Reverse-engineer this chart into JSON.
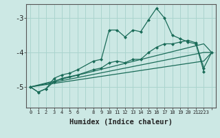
{
  "xlabel": "Humidex (Indice chaleur)",
  "bg_color": "#cce8e4",
  "grid_color": "#aad4ce",
  "line_color": "#1a6b58",
  "xlim": [
    -0.5,
    23.5
  ],
  "ylim": [
    -5.6,
    -2.6
  ],
  "yticks": [
    -5,
    -4,
    -3
  ],
  "ytick_labels": [
    "-5",
    "-4",
    "-3"
  ],
  "xtick_positions": [
    0,
    1,
    2,
    3,
    4,
    5,
    6,
    7,
    8,
    9,
    10,
    11,
    12,
    13,
    14,
    15,
    16,
    17,
    18,
    19,
    20,
    21,
    22,
    23
  ],
  "xtick_labels": [
    "0",
    "1",
    "2",
    "3",
    "4",
    "5",
    "6",
    "",
    "8",
    "9",
    "10",
    "11",
    "12",
    "13",
    "14",
    "15",
    "16",
    "17",
    "18",
    "19",
    "20",
    "21",
    "2223",
    ""
  ],
  "line1_x": [
    0,
    1,
    2,
    3,
    4,
    5,
    6,
    8,
    9,
    10,
    11,
    12,
    13,
    14,
    15,
    16,
    17,
    18,
    19,
    20,
    21,
    22
  ],
  "line1_y": [
    -5.0,
    -5.15,
    -5.05,
    -4.75,
    -4.65,
    -4.6,
    -4.5,
    -4.25,
    -4.2,
    -3.35,
    -3.35,
    -3.55,
    -3.35,
    -3.4,
    -3.05,
    -2.72,
    -3.0,
    -3.5,
    -3.6,
    -3.7,
    -3.75,
    -4.55
  ],
  "line2_x": [
    0,
    1,
    2,
    3,
    4,
    5,
    6,
    8,
    9,
    10,
    11,
    12,
    13,
    14,
    15,
    16,
    17,
    18,
    19,
    20,
    21,
    22,
    23
  ],
  "line2_y": [
    -5.0,
    -5.15,
    -5.05,
    -4.85,
    -4.75,
    -4.7,
    -4.65,
    -4.5,
    -4.45,
    -4.3,
    -4.25,
    -4.3,
    -4.2,
    -4.2,
    -4.0,
    -3.85,
    -3.75,
    -3.75,
    -3.7,
    -3.65,
    -3.72,
    -4.45,
    -4.0
  ],
  "line3_x": [
    0,
    22,
    23
  ],
  "line3_y": [
    -5.0,
    -3.75,
    -4.0
  ],
  "line4_x": [
    0,
    22,
    23
  ],
  "line4_y": [
    -5.0,
    -4.0,
    -4.0
  ],
  "line5_x": [
    0,
    22,
    23
  ],
  "line5_y": [
    -5.0,
    -4.25,
    -4.0
  ]
}
